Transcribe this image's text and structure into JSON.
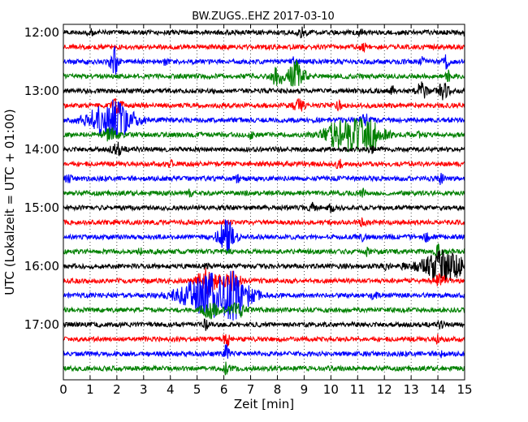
{
  "chart_data": {
    "type": "line",
    "title": "BW.ZUGS..EHZ 2017-03-10",
    "xlabel": "Zeit  [min]",
    "ylabel": "UTC (Lokalzeit = UTC + 01:00)",
    "xlim": [
      0,
      15
    ],
    "x_ticks": [
      "0",
      "1",
      "2",
      "3",
      "4",
      "5",
      "6",
      "7",
      "8",
      "9",
      "10",
      "11",
      "12",
      "13",
      "14",
      "15"
    ],
    "y_ticks": [
      "12:00",
      "13:00",
      "14:00",
      "15:00",
      "16:00",
      "17:00"
    ],
    "grid": true,
    "trace_minutes": 15,
    "trace_colors": [
      "#000000",
      "#ff0000",
      "#0000ff",
      "#008000"
    ],
    "traces": [
      {
        "start": "12:00",
        "events": [
          {
            "t": 1.0,
            "amp": 0.4,
            "dur": 0.1
          },
          {
            "t": 8.9,
            "amp": 0.5,
            "dur": 0.15
          },
          {
            "t": 11.1,
            "amp": 0.4,
            "dur": 0.1
          },
          {
            "t": 15.0,
            "amp": 0.3,
            "dur": 0.05
          }
        ]
      },
      {
        "start": "12:15",
        "events": [
          {
            "t": 11.2,
            "amp": 0.6,
            "dur": 0.1
          }
        ]
      },
      {
        "start": "12:30",
        "events": [
          {
            "t": 1.9,
            "amp": 1.8,
            "dur": 0.15
          },
          {
            "t": 3.8,
            "amp": 0.4,
            "dur": 0.1
          },
          {
            "t": 8.6,
            "amp": 0.5,
            "dur": 0.1
          },
          {
            "t": 13.4,
            "amp": 0.6,
            "dur": 0.1
          },
          {
            "t": 14.3,
            "amp": 0.8,
            "dur": 0.1
          }
        ]
      },
      {
        "start": "12:45",
        "events": [
          {
            "t": 8.0,
            "amp": 1.3,
            "dur": 0.2
          },
          {
            "t": 8.7,
            "amp": 2.0,
            "dur": 0.3
          },
          {
            "t": 14.4,
            "amp": 0.6,
            "dur": 0.1
          }
        ]
      },
      {
        "start": "13:00",
        "events": [
          {
            "t": 12.3,
            "amp": 0.5,
            "dur": 0.1
          },
          {
            "t": 13.4,
            "amp": 1.0,
            "dur": 0.2
          },
          {
            "t": 14.2,
            "amp": 1.0,
            "dur": 0.2
          }
        ]
      },
      {
        "start": "13:15",
        "events": [
          {
            "t": 2.0,
            "amp": 0.8,
            "dur": 0.2
          },
          {
            "t": 8.8,
            "amp": 0.8,
            "dur": 0.2
          },
          {
            "t": 10.3,
            "amp": 0.5,
            "dur": 0.1
          }
        ]
      },
      {
        "start": "13:30",
        "events": [
          {
            "t": 1.8,
            "amp": 2.5,
            "dur": 0.8
          },
          {
            "t": 11.3,
            "amp": 0.6,
            "dur": 0.2
          }
        ]
      },
      {
        "start": "13:45",
        "events": [
          {
            "t": 1.8,
            "amp": 0.8,
            "dur": 0.3
          },
          {
            "t": 7.0,
            "amp": 0.4,
            "dur": 0.1
          },
          {
            "t": 10.4,
            "amp": 2.0,
            "dur": 0.6
          },
          {
            "t": 11.4,
            "amp": 2.0,
            "dur": 0.6
          },
          {
            "t": 13.3,
            "amp": 0.4,
            "dur": 0.1
          }
        ]
      },
      {
        "start": "14:00",
        "events": [
          {
            "t": 2.0,
            "amp": 0.8,
            "dur": 0.2
          },
          {
            "t": 11.5,
            "amp": 0.5,
            "dur": 0.1
          }
        ]
      },
      {
        "start": "14:15",
        "events": [
          {
            "t": 4.0,
            "amp": 0.5,
            "dur": 0.1
          },
          {
            "t": 10.3,
            "amp": 0.6,
            "dur": 0.1
          }
        ]
      },
      {
        "start": "14:30",
        "events": [
          {
            "t": 0.2,
            "amp": 0.6,
            "dur": 0.1
          },
          {
            "t": 6.5,
            "amp": 0.4,
            "dur": 0.1
          },
          {
            "t": 14.1,
            "amp": 0.6,
            "dur": 0.1
          }
        ]
      },
      {
        "start": "14:45",
        "events": [
          {
            "t": 4.7,
            "amp": 0.4,
            "dur": 0.1
          },
          {
            "t": 11.2,
            "amp": 0.5,
            "dur": 0.1
          }
        ]
      },
      {
        "start": "15:00",
        "events": [
          {
            "t": 9.3,
            "amp": 0.5,
            "dur": 0.1
          },
          {
            "t": 10.0,
            "amp": 0.4,
            "dur": 0.1
          }
        ]
      },
      {
        "start": "15:15",
        "events": [
          {
            "t": 11.2,
            "amp": 0.5,
            "dur": 0.1
          }
        ]
      },
      {
        "start": "15:30",
        "events": [
          {
            "t": 6.1,
            "amp": 2.5,
            "dur": 0.3
          },
          {
            "t": 11.2,
            "amp": 0.4,
            "dur": 0.1
          },
          {
            "t": 13.6,
            "amp": 0.5,
            "dur": 0.1
          }
        ]
      },
      {
        "start": "15:45",
        "events": [
          {
            "t": 2.9,
            "amp": 0.5,
            "dur": 0.1
          },
          {
            "t": 11.3,
            "amp": 0.5,
            "dur": 0.1
          },
          {
            "t": 14.0,
            "amp": 0.8,
            "dur": 0.1
          }
        ]
      },
      {
        "start": "16:00",
        "events": [
          {
            "t": 5.3,
            "amp": 0.4,
            "dur": 0.1
          },
          {
            "t": 12.1,
            "amp": 0.4,
            "dur": 0.1
          },
          {
            "t": 12.7,
            "amp": 0.4,
            "dur": 0.1
          },
          {
            "t": 14.2,
            "amp": 2.0,
            "dur": 0.8
          }
        ]
      },
      {
        "start": "16:15",
        "events": [
          {
            "t": 5.4,
            "amp": 1.6,
            "dur": 0.4
          },
          {
            "t": 6.3,
            "amp": 1.2,
            "dur": 0.3
          },
          {
            "t": 14.1,
            "amp": 0.8,
            "dur": 0.2
          }
        ]
      },
      {
        "start": "16:30",
        "events": [
          {
            "t": 5.3,
            "amp": 2.2,
            "dur": 1.0
          },
          {
            "t": 6.3,
            "amp": 2.5,
            "dur": 0.7
          },
          {
            "t": 11.6,
            "amp": 0.4,
            "dur": 0.1
          }
        ]
      },
      {
        "start": "16:45",
        "events": [
          {
            "t": 5.5,
            "amp": 1.0,
            "dur": 0.3
          },
          {
            "t": 6.5,
            "amp": 0.8,
            "dur": 0.3
          }
        ]
      },
      {
        "start": "17:00",
        "events": [
          {
            "t": 5.3,
            "amp": 0.6,
            "dur": 0.1
          },
          {
            "t": 14.1,
            "amp": 0.4,
            "dur": 0.1
          }
        ]
      },
      {
        "start": "17:15",
        "events": [
          {
            "t": 6.1,
            "amp": 1.0,
            "dur": 0.1
          },
          {
            "t": 14.0,
            "amp": 0.5,
            "dur": 0.1
          }
        ]
      },
      {
        "start": "17:30",
        "events": [
          {
            "t": 6.1,
            "amp": 1.4,
            "dur": 0.1
          },
          {
            "t": 14.1,
            "amp": 0.5,
            "dur": 0.1
          }
        ]
      },
      {
        "start": "17:45",
        "events": [
          {
            "t": 6.1,
            "amp": 0.8,
            "dur": 0.1
          }
        ]
      }
    ]
  }
}
